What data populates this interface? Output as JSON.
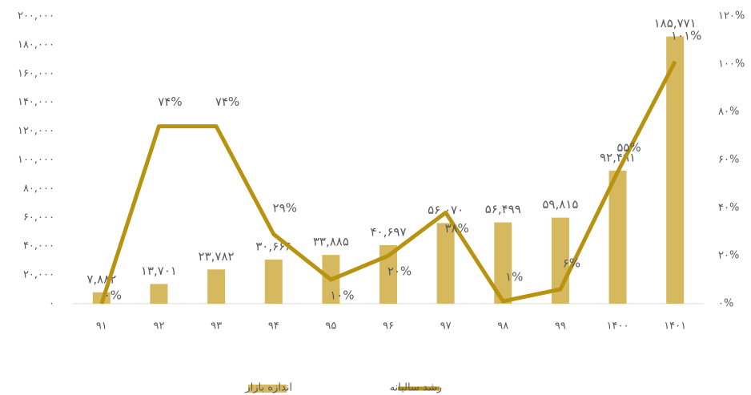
{
  "chart_data": {
    "type": "bar",
    "categories": [
      "۹۱",
      "۹۲",
      "۹۳",
      "۹۴",
      "۹۵",
      "۹۶",
      "۹۷",
      "۹۸",
      "۹۹",
      "۱۴۰۰",
      "۱۴۰۱"
    ],
    "series": [
      {
        "name": "اندازه بازار",
        "type": "bar",
        "color": "#d6b95f",
        "values": [
          7882,
          13701,
          23782,
          30666,
          33885,
          40697,
          56070,
          56499,
          59815,
          92491,
          185771
        ],
        "value_labels": [
          "۷,۸۸۲",
          "۱۳,۷۰۱",
          "۲۳,۷۸۲",
          "۳۰,۶۶۶",
          "۳۳,۸۸۵",
          "۴۰,۶۹۷",
          "۵۶,۰۷۰",
          "۵۶,۴۹۹",
          "۵۹,۸۱۵",
          "۹۲,۴۹۱",
          "۱۸۵,۷۷۱"
        ]
      },
      {
        "name": "رشد سالیانه",
        "type": "line",
        "axis": "y2",
        "color": "#b8930f",
        "values": [
          0,
          74,
          74,
          29,
          10,
          20,
          38,
          1,
          6,
          55,
          101
        ],
        "value_labels": [
          "۰%",
          "۷۴%",
          "۷۴%",
          "۲۹%",
          "۱۰%",
          "۲۰%",
          "۳۸%",
          "۱%",
          "۶%",
          "۵۵%",
          "۱۰۱%"
        ]
      }
    ],
    "ylim": [
      0,
      200000
    ],
    "yticks": [
      {
        "value": 0,
        "label": "۰"
      },
      {
        "value": 20000,
        "label": "۲۰,۰۰۰"
      },
      {
        "value": 40000,
        "label": "۴۰,۰۰۰"
      },
      {
        "value": 60000,
        "label": "۶۰,۰۰۰"
      },
      {
        "value": 80000,
        "label": "۸۰,۰۰۰"
      },
      {
        "value": 100000,
        "label": "۱۰۰,۰۰۰"
      },
      {
        "value": 120000,
        "label": "۱۲۰,۰۰۰"
      },
      {
        "value": 140000,
        "label": "۱۴۰,۰۰۰"
      },
      {
        "value": 160000,
        "label": "۱۶۰,۰۰۰"
      },
      {
        "value": 180000,
        "label": "۱۸۰,۰۰۰"
      },
      {
        "value": 200000,
        "label": "۲۰۰,۰۰۰"
      }
    ],
    "y2lim": [
      0,
      120
    ],
    "y2ticks": [
      {
        "value": 0,
        "label": "۰%"
      },
      {
        "value": 20,
        "label": "۲۰%"
      },
      {
        "value": 40,
        "label": "۴۰%"
      },
      {
        "value": 60,
        "label": "۶۰%"
      },
      {
        "value": 80,
        "label": "۸۰%"
      },
      {
        "value": 100,
        "label": "۱۰۰%"
      },
      {
        "value": 120,
        "label": "۱۲۰%"
      }
    ],
    "grid": false,
    "legend": "bottom"
  }
}
